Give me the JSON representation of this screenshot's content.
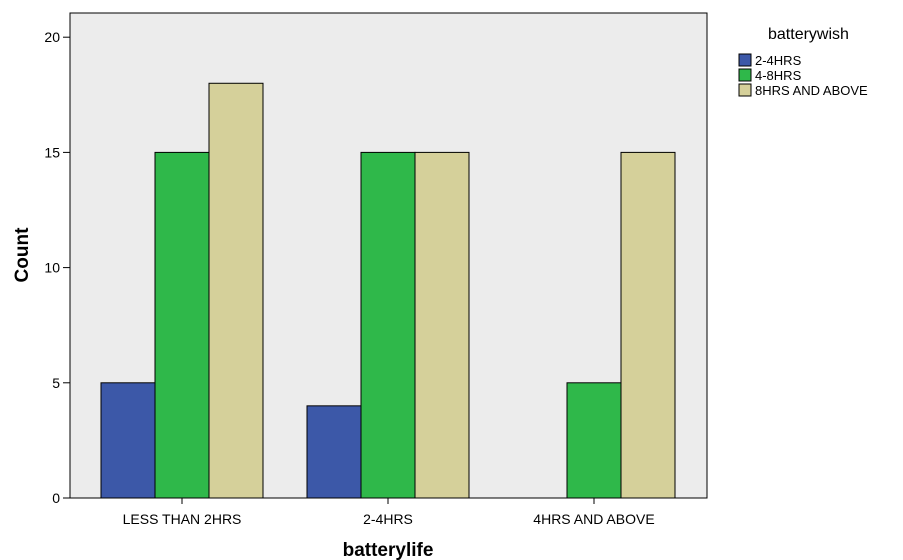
{
  "chart_data": {
    "type": "bar",
    "xlabel": "batterylife",
    "ylabel": "Count",
    "categories": [
      "LESS THAN 2HRS",
      "2-4HRS",
      "4HRS AND ABOVE"
    ],
    "ylim": [
      0,
      20
    ],
    "yticks": [
      0,
      5,
      10,
      15,
      20
    ],
    "legend_title": "batterywish",
    "legend_position": "right",
    "grid": false,
    "plot_background": "#ececec",
    "series": [
      {
        "name": "2-4HRS",
        "color": "#3c58a8",
        "values": [
          5,
          4,
          0
        ]
      },
      {
        "name": "4-8HRS",
        "color": "#2fb84a",
        "values": [
          15,
          15,
          5
        ]
      },
      {
        "name": "8HRS AND ABOVE",
        "color": "#d5d09a",
        "values": [
          18,
          15,
          15
        ]
      }
    ]
  }
}
